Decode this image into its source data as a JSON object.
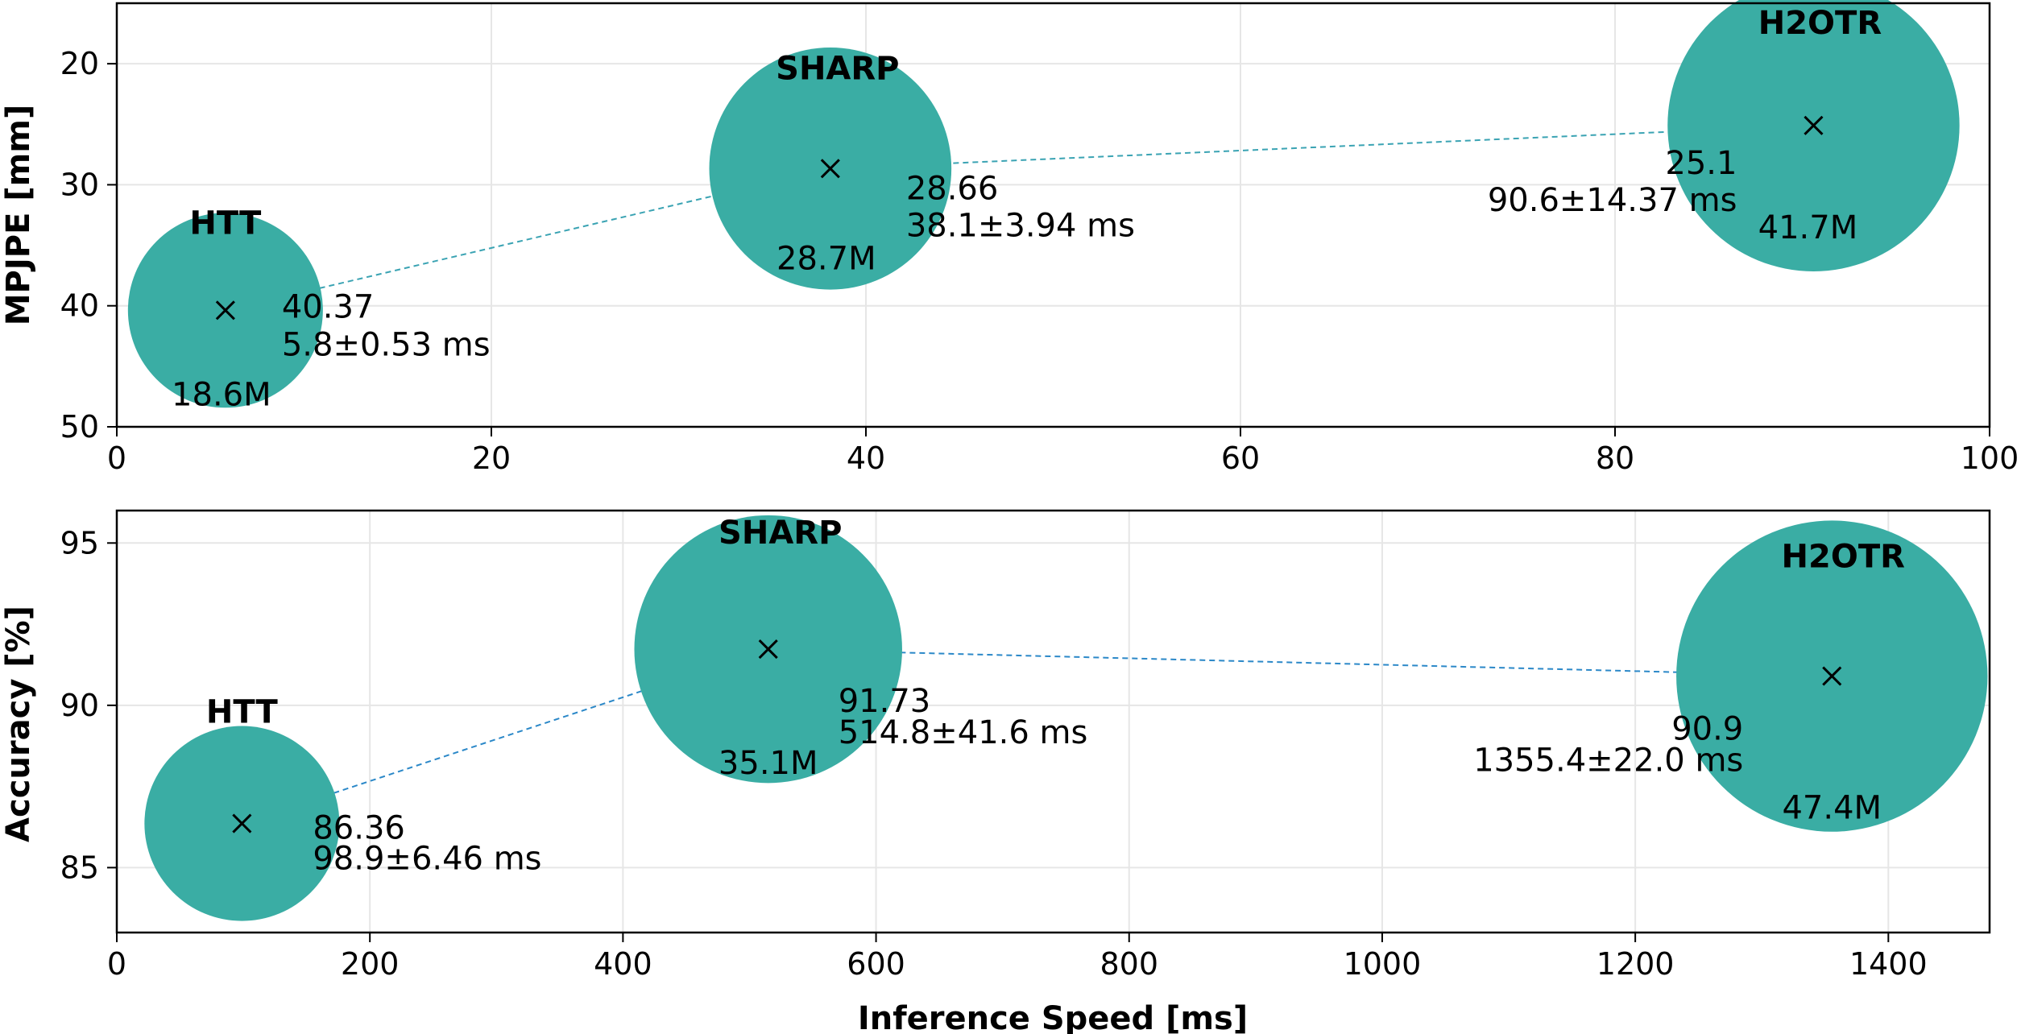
{
  "chart_data": [
    {
      "type": "scatter",
      "xlabel": "",
      "ylabel": "MPJPE [mm]",
      "xlim": [
        0,
        100
      ],
      "ylim": [
        15,
        50
      ],
      "y_inverted": true,
      "xticks": [
        0,
        20,
        40,
        60,
        80,
        100
      ],
      "yticks": [
        20,
        30,
        40,
        50
      ],
      "grid": true,
      "colors": {
        "marker": "#3aada4",
        "line": "#3aa3b3"
      },
      "points": [
        {
          "name": "HTT",
          "x": 5.8,
          "y": 40.37,
          "value_label": "40.37",
          "speed_label": "5.8±0.53 ms",
          "params_label": "18.6M",
          "params": 18.6
        },
        {
          "name": "SHARP",
          "x": 38.1,
          "y": 28.66,
          "value_label": "28.66",
          "speed_label": "38.1±3.94 ms",
          "params_label": "28.7M",
          "params": 28.7
        },
        {
          "name": "H2OTR",
          "x": 90.6,
          "y": 25.1,
          "value_label": "25.1",
          "speed_label": "90.6±14.37 ms",
          "params_label": "41.7M",
          "params": 41.7
        }
      ]
    },
    {
      "type": "scatter",
      "xlabel": "Inference Speed [ms]",
      "ylabel": "Accuracy [%]",
      "xlim": [
        0,
        1480
      ],
      "ylim": [
        83,
        96
      ],
      "y_inverted": false,
      "xticks": [
        0,
        200,
        400,
        600,
        800,
        1000,
        1200,
        1400
      ],
      "yticks": [
        85,
        90,
        95
      ],
      "grid": true,
      "colors": {
        "marker": "#3aada4",
        "line": "#2b88c8"
      },
      "points": [
        {
          "name": "HTT",
          "x": 98.9,
          "y": 86.36,
          "value_label": "86.36",
          "speed_label": "98.9±6.46 ms",
          "params_label": "",
          "params": 18.6
        },
        {
          "name": "SHARP",
          "x": 514.8,
          "y": 91.73,
          "value_label": "91.73",
          "speed_label": "514.8±41.6 ms",
          "params_label": "35.1M",
          "params": 35.1
        },
        {
          "name": "H2OTR",
          "x": 1355.4,
          "y": 90.9,
          "value_label": "90.9",
          "speed_label": "1355.4±22.0 ms",
          "params_label": "47.4M",
          "params": 47.4
        }
      ]
    }
  ]
}
